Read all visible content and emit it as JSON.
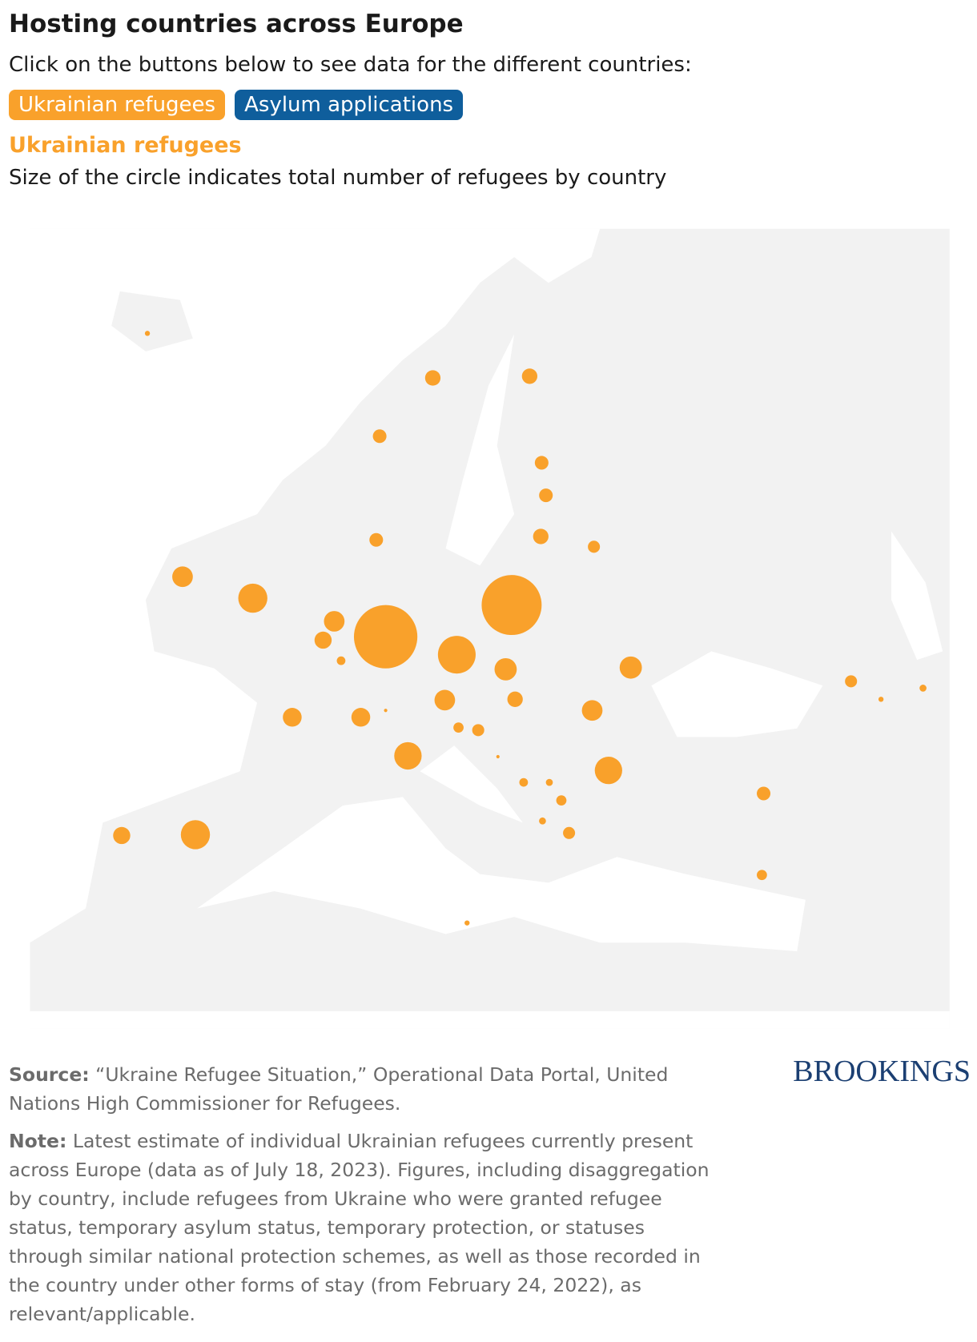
{
  "header": {
    "title": "Hosting countries across Europe",
    "instruction": "Click on the buttons below to see data for the different countries:",
    "buttons": [
      "Ukrainian refugees",
      "Asylum applications"
    ]
  },
  "legend": {
    "title": "Ukrainian refugees",
    "description": "Size of the circle indicates total number of refugees by country"
  },
  "map": {
    "circles": [
      7,
      64,
      50,
      64,
      50,
      50,
      64,
      39,
      50,
      114,
      228,
      114,
      79,
      20,
      1080,
      966,
      382,
      133,
      133,
      114,
      64,
      114,
      95,
      3,
      95,
      28,
      39,
      202,
      3,
      202,
      20,
      13,
      28,
      13,
      39,
      50,
      28,
      7,
      79,
      228,
      39,
      7,
      13
    ]
  },
  "footer": {
    "source_label": "Source:",
    "source": "“Ukraine Refugee Situation,” Operational Data Portal, United Nations High Commissioner for Refugees.",
    "note_label": "Note:",
    "note": "Latest estimate of individual Ukrainian refugees currently present across Europe (data as of July 18, 2023). Figures, including disaggregation by country, include refugees from Ukraine who were granted refugee status, temporary asylum status, temporary protection, or statuses through similar national protection schemes, as well as those recorded in the country under other forms of stay (from February 24, 2022), as relevant/applicable.",
    "logo": "BROOKINGS"
  }
}
